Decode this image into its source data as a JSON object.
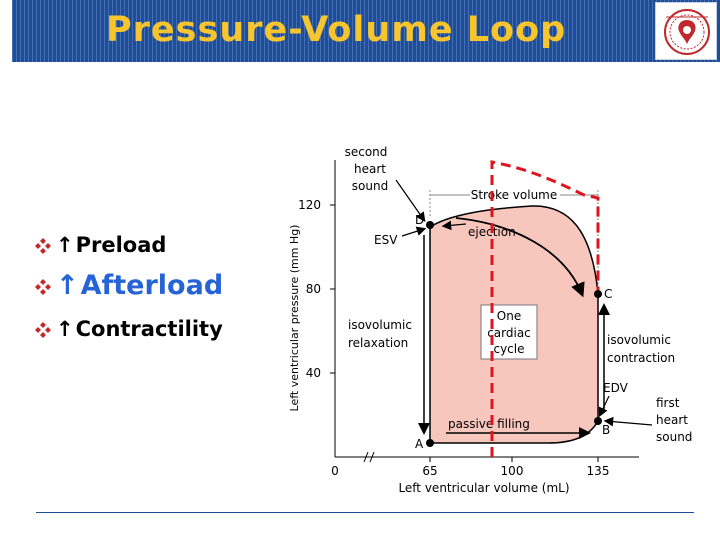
{
  "slide": {
    "title": "Pressure-Volume Loop",
    "bullets": [
      {
        "arrow": "↑",
        "label": "Preload"
      },
      {
        "arrow": "↑",
        "label": "Afterload"
      },
      {
        "arrow": "↑",
        "label": "Contractility"
      }
    ]
  },
  "diagram": {
    "y_axis_label": "Left ventricular pressure (mm Hg)",
    "x_axis_label": "Left ventricular volume (mL)",
    "y_ticks": [
      "120",
      "80",
      "40"
    ],
    "x_ticks": [
      "0",
      "65",
      "100",
      "135"
    ],
    "points": {
      "a": "A",
      "b": "B",
      "c": "C",
      "d": "D"
    },
    "labels": {
      "stroke_volume": "Stroke volume",
      "esv": "ESV",
      "edv": "EDV",
      "ejection": "ejection",
      "passive_filling": "passive filling",
      "second_heart_sound_1": "second",
      "second_heart_sound_2": "heart",
      "second_heart_sound_3": "sound",
      "first_heart_sound_1": "first",
      "first_heart_sound_2": "heart",
      "first_heart_sound_3": "sound",
      "iso_relax_1": "isovolumic",
      "iso_relax_2": "relaxation",
      "iso_contract_1": "isovolumic",
      "iso_contract_2": "contraction",
      "cycle_1": "One",
      "cycle_2": "cardiac",
      "cycle_3": "cycle"
    },
    "colors": {
      "loop_fill": "#f7c6bd",
      "overlay_dash": "#e0141e"
    }
  },
  "theme": {
    "header_bg": "#1d4e9c",
    "title_color": "#f8c62c",
    "afterload_color": "#2563d6"
  }
}
